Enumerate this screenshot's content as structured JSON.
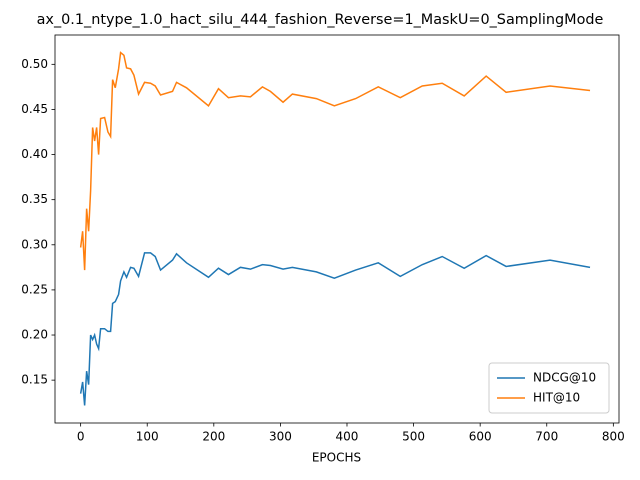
{
  "chart_data": {
    "type": "line",
    "title": "ax_0.1_ntype_1.0_hact_silu_444_fashion_Reverse=1_MaskU=0_SamplingMode",
    "x_label": "EPOCHS",
    "x": [
      0,
      3,
      6,
      9,
      12,
      15,
      18,
      21,
      24,
      27,
      30,
      36,
      41,
      45,
      48,
      52,
      57,
      60,
      65,
      69,
      75,
      80,
      87,
      96,
      105,
      112,
      120,
      138,
      144,
      159,
      192,
      207,
      222,
      240,
      255,
      273,
      285,
      304,
      318,
      354,
      381,
      413,
      447,
      480,
      513,
      543,
      576,
      609,
      639,
      705,
      765
    ],
    "series": [
      {
        "name": "NDCG@10",
        "color": "#1f77b4",
        "values": [
          0.135,
          0.148,
          0.122,
          0.16,
          0.145,
          0.2,
          0.195,
          0.2,
          0.19,
          0.185,
          0.207,
          0.207,
          0.204,
          0.204,
          0.235,
          0.237,
          0.245,
          0.26,
          0.27,
          0.264,
          0.275,
          0.274,
          0.265,
          0.291,
          0.291,
          0.287,
          0.272,
          0.283,
          0.29,
          0.28,
          0.264,
          0.274,
          0.267,
          0.275,
          0.273,
          0.278,
          0.277,
          0.273,
          0.275,
          0.27,
          0.263,
          0.272,
          0.28,
          0.265,
          0.278,
          0.287,
          0.274,
          0.288,
          0.276,
          0.283,
          0.275
        ]
      },
      {
        "name": "HIT@10",
        "color": "#ff7f0e",
        "values": [
          0.297,
          0.315,
          0.272,
          0.34,
          0.315,
          0.36,
          0.43,
          0.415,
          0.43,
          0.4,
          0.44,
          0.441,
          0.425,
          0.42,
          0.483,
          0.474,
          0.495,
          0.513,
          0.51,
          0.496,
          0.495,
          0.488,
          0.467,
          0.48,
          0.479,
          0.476,
          0.466,
          0.47,
          0.48,
          0.474,
          0.454,
          0.473,
          0.463,
          0.465,
          0.464,
          0.475,
          0.47,
          0.458,
          0.467,
          0.462,
          0.454,
          0.462,
          0.475,
          0.463,
          0.476,
          0.479,
          0.465,
          0.487,
          0.469,
          0.476,
          0.471
        ]
      }
    ],
    "xlim": [
      -38.5,
      808.5
    ],
    "xticks": [
      0,
      100,
      200,
      300,
      400,
      500,
      600,
      700,
      800
    ],
    "ylim": [
      0.1025,
      0.5325
    ],
    "yticks": [
      0.15,
      {
        "value": 0.2,
        "label": "0.20"
      },
      0.25,
      {
        "value": 0.3,
        "label": "0.30"
      },
      0.35,
      {
        "value": 0.4,
        "label": "0.40"
      },
      0.45,
      {
        "value": 0.5,
        "label": "0.50"
      }
    ],
    "legend": "lower right",
    "grid": false
  }
}
